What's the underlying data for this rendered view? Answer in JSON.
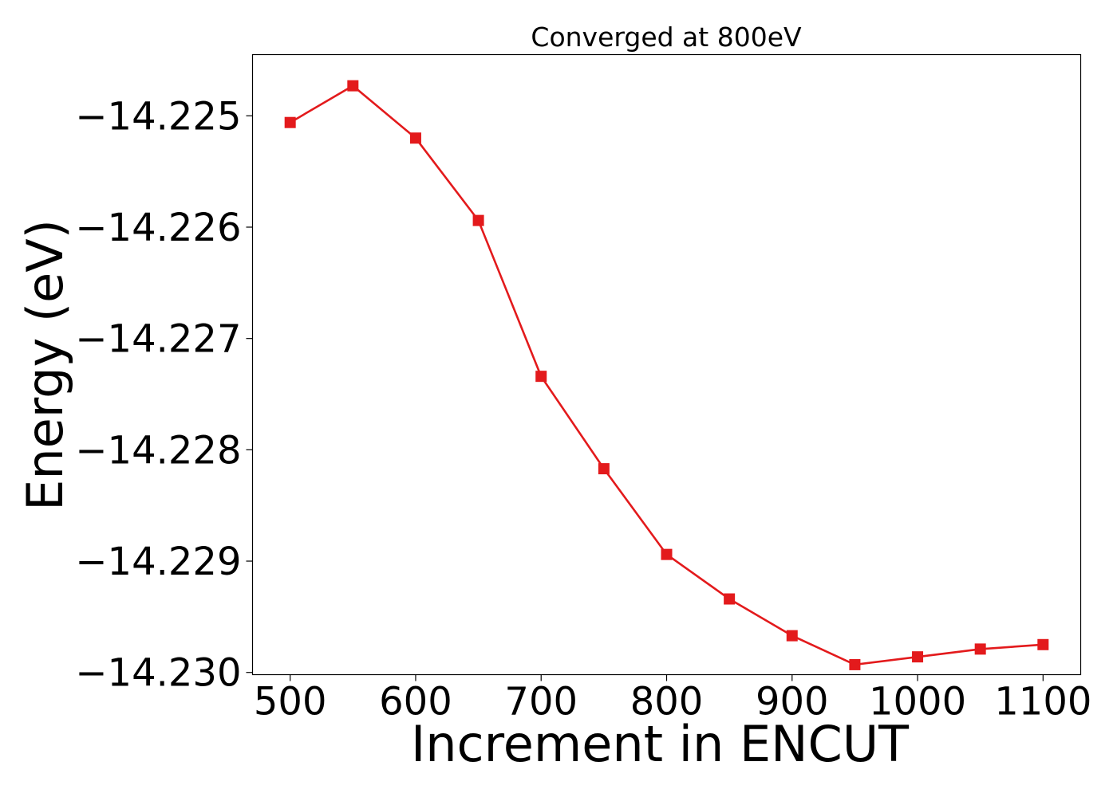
{
  "chart_data": {
    "type": "line",
    "title": "Converged at 800eV",
    "xlabel": "Increment in ENCUT",
    "ylabel": "Energy (eV)",
    "x": [
      500,
      550,
      600,
      650,
      700,
      750,
      800,
      850,
      900,
      950,
      1000,
      1050,
      1100
    ],
    "series": [
      {
        "values": [
          -14.22506,
          -14.22473,
          -14.2252,
          -14.22594,
          -14.22734,
          -14.22817,
          -14.22894,
          -14.22934,
          -14.22967,
          -14.22993,
          -14.22986,
          -14.22979,
          -14.22975
        ],
        "color": "#e31a1c",
        "marker": "square"
      }
    ],
    "xlim": [
      470,
      1130
    ],
    "ylim": [
      -14.23002,
      -14.22445
    ],
    "xticks": [
      500,
      600,
      700,
      800,
      900,
      1000,
      1100
    ],
    "xtick_labels": [
      "500",
      "600",
      "700",
      "800",
      "900",
      "1000",
      "1100"
    ],
    "yticks": [
      -14.225,
      -14.226,
      -14.227,
      -14.228,
      -14.229,
      -14.23
    ],
    "ytick_labels": [
      "−14.225",
      "−14.226",
      "−14.227",
      "−14.228",
      "−14.229",
      "−14.230"
    ],
    "grid": false,
    "legend": false
  }
}
